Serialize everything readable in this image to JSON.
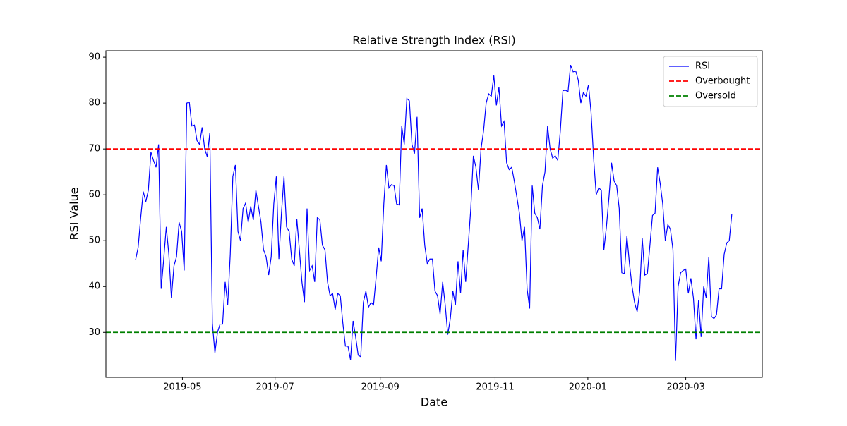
{
  "chart_data": {
    "type": "line",
    "title": "Relative Strength Index (RSI)",
    "xlabel": "Date",
    "ylabel": "RSI Value",
    "series": [
      {
        "name": "RSI",
        "color": "#0000ff",
        "values": [
          45.8,
          48.5,
          55,
          60.7,
          58.5,
          61,
          69.3,
          67.5,
          66,
          71,
          39.5,
          46,
          53,
          47,
          37.5,
          44.5,
          46.5,
          54,
          52,
          43.5,
          80,
          80.2,
          75,
          75.2,
          71.8,
          71,
          74.7,
          70,
          68.3,
          73.5,
          32,
          25.5,
          30,
          31.8,
          31.8,
          41,
          36,
          47,
          64,
          66.5,
          52,
          50,
          57,
          58.2,
          54,
          57.5,
          54.5,
          61,
          57.5,
          54,
          48,
          46.5,
          42.5,
          46.5,
          58,
          64,
          46,
          56,
          64,
          53,
          52,
          46,
          44.5,
          54.8,
          48,
          41,
          36.6,
          57,
          43.5,
          44.5,
          41,
          55,
          54.6,
          49,
          48,
          41,
          38,
          38.5,
          35,
          38.5,
          38,
          32,
          27,
          27,
          24,
          32.5,
          29,
          25,
          24.7,
          36.5,
          39,
          35.5,
          36.5,
          36,
          42,
          48.5,
          45.5,
          58,
          66.5,
          61.5,
          62.2,
          62,
          58,
          57.8,
          75,
          71,
          81,
          80.5,
          71,
          69,
          77,
          55,
          57,
          49,
          45,
          46,
          46,
          39,
          38,
          34,
          41,
          36,
          29.5,
          33,
          39,
          36,
          45.5,
          38.5,
          48,
          41,
          49,
          57,
          68.5,
          66,
          61,
          70,
          74,
          80,
          82,
          81.5,
          86,
          79.5,
          83.5,
          75,
          76,
          67,
          65.5,
          66,
          63,
          59.5,
          56,
          50,
          53,
          39.5,
          35.2,
          62,
          56,
          55,
          52.5,
          62,
          65,
          75,
          70,
          68,
          68.5,
          67.5,
          74,
          82.7,
          82.8,
          82.5,
          88.3,
          86.8,
          87,
          85,
          80,
          82.3,
          81.5,
          84,
          78,
          68,
          60,
          61.5,
          61,
          48,
          53,
          59.5,
          67,
          63,
          62,
          57,
          43,
          42.8,
          51,
          45,
          40,
          36.5,
          34.5,
          39,
          50.5,
          42.5,
          42.8,
          49,
          55.5,
          56,
          66,
          62.5,
          58,
          50,
          53.5,
          52.5,
          48,
          23.8,
          40,
          43,
          43.5,
          43.8,
          38.5,
          41.8,
          37.5,
          28.5,
          37,
          29,
          40,
          37.5,
          46.5,
          33.5,
          33,
          33.8,
          39.5,
          39.5,
          47,
          49.5,
          50,
          55.8
        ]
      }
    ],
    "hlines": [
      {
        "name": "Overbought",
        "value": 70,
        "color": "#ff0000"
      },
      {
        "name": "Oversold",
        "value": 30,
        "color": "#008000"
      }
    ],
    "xlim": [
      -11.6,
      244.9
    ],
    "xticks": [
      {
        "value": 18.3,
        "label": "2019-05"
      },
      {
        "value": 54.5,
        "label": "2019-07"
      },
      {
        "value": 95.6,
        "label": "2019-09"
      },
      {
        "value": 140.5,
        "label": "2019-11"
      },
      {
        "value": 176.75,
        "label": "2020-01"
      },
      {
        "value": 215,
        "label": "2020-03"
      }
    ],
    "ylim": [
      20.2,
      91.4
    ],
    "yticks": [
      30,
      40,
      50,
      60,
      70,
      80,
      90
    ],
    "legend": "upper right"
  }
}
